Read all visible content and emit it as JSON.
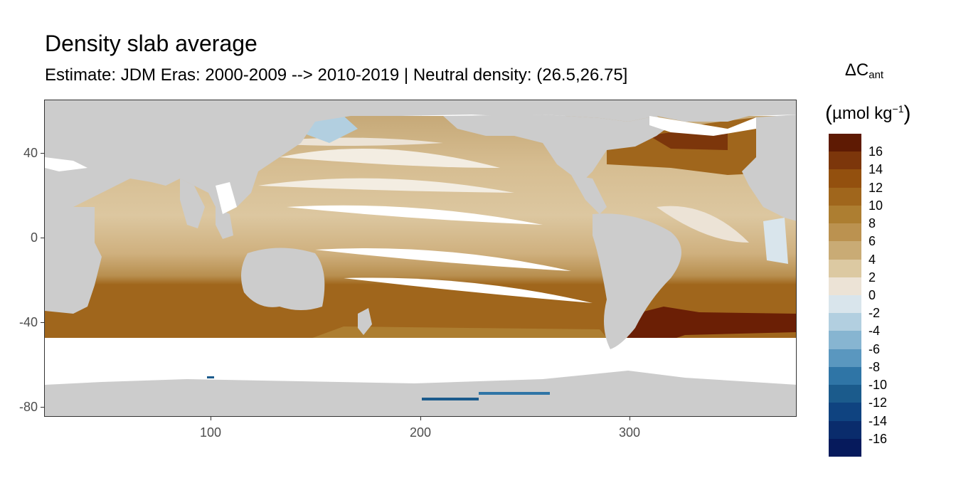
{
  "title": "Density slab average",
  "subtitle": "Estimate: JDM Eras: 2000-2009 --> 2010-2019 | Neutral density: (26.5,26.75]",
  "x_ticks": [
    "100",
    "200",
    "300"
  ],
  "y_ticks": [
    "40",
    "0",
    "-40",
    "-80"
  ],
  "legend": {
    "title_main": "ΔC",
    "title_sub": "ant",
    "unit_open": "(",
    "unit_text": "µmol kg",
    "unit_sup": "−1",
    "unit_close": ")",
    "labels": [
      "16",
      "14",
      "12",
      "10",
      "8",
      "6",
      "4",
      "2",
      "0",
      "-2",
      "-4",
      "-6",
      "-8",
      "-10",
      "-12",
      "-14",
      "-16"
    ],
    "colors": [
      "#5e1a03",
      "#7c360b",
      "#93500e",
      "#a0661c",
      "#ad7e31",
      "#bb9250",
      "#c9ab75",
      "#dcc9a2",
      "#ece3d6",
      "#d9e5ec",
      "#b2cfe0",
      "#87b5d1",
      "#5a97bf",
      "#2f75a6",
      "#1b5b8c",
      "#0f4380",
      "#0a2c6c",
      "#061a5c"
    ]
  },
  "colors": {
    "land": "#cccccc",
    "no_data": "#ffffff",
    "negative_anomaly": "#2f75a6",
    "strong_positive": "#6b1f05"
  }
}
